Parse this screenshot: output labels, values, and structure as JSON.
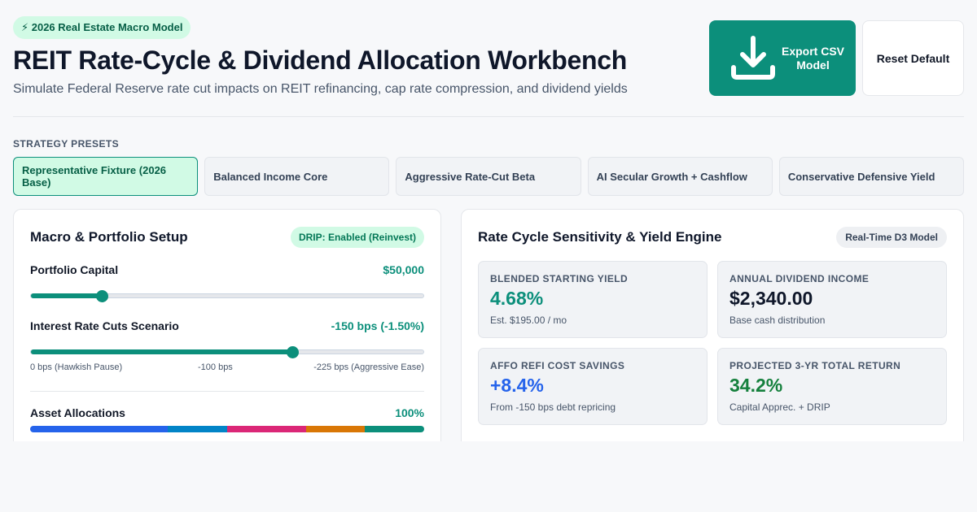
{
  "header": {
    "badge": "⚡ 2026 Real Estate Macro Model",
    "title": "REIT Rate-Cycle & Dividend Allocation Workbench",
    "subtitle": "Simulate Federal Reserve rate cut impacts on REIT refinancing, cap rate compression, and dividend yields",
    "export_label": "Export CSV Model",
    "export_icon": "download-icon",
    "reset_label": "Reset Default"
  },
  "presets": {
    "label": "STRATEGY PRESETS",
    "items": [
      {
        "label": "Representative Fixture (2026 Base)",
        "active": true
      },
      {
        "label": "Balanced Income Core",
        "active": false
      },
      {
        "label": "Aggressive Rate-Cut Beta",
        "active": false
      },
      {
        "label": "AI Secular Growth + Cashflow",
        "active": false
      },
      {
        "label": "Conservative Defensive Yield",
        "active": false
      }
    ]
  },
  "setup": {
    "title": "Macro & Portfolio Setup",
    "drip_badge": "DRIP: Enabled (Reinvest)",
    "capital": {
      "label": "Portfolio Capital",
      "value": "$50,000",
      "fraction": 0.18
    },
    "rate_cuts": {
      "label": "Interest Rate Cuts Scenario",
      "value": "-150 bps (-1.50%)",
      "fraction": 0.667,
      "ticks": [
        "0 bps (Hawkish Pause)",
        "-100 bps",
        "-225 bps (Aggressive Ease)"
      ]
    },
    "allocations": {
      "label": "Asset Allocations",
      "total": "100%",
      "segments": [
        {
          "share": 35,
          "color": "#2563eb"
        },
        {
          "share": 15,
          "color": "#0284c7"
        },
        {
          "share": 20,
          "color": "#db2777"
        },
        {
          "share": 15,
          "color": "#d97706"
        },
        {
          "share": 15,
          "color": "#0c8f7b"
        }
      ]
    }
  },
  "engine": {
    "title": "Rate Cycle Sensitivity & Yield Engine",
    "badge": "Real-Time D3 Model",
    "metrics": [
      {
        "label": "BLENDED STARTING YIELD",
        "value": "4.68%",
        "sub": "Est. $195.00 / mo",
        "color": "#0c8f7b"
      },
      {
        "label": "ANNUAL DIVIDEND INCOME",
        "value": "$2,340.00",
        "sub": "Base cash distribution",
        "color": "#0f172a"
      },
      {
        "label": "AFFO REFI COST SAVINGS",
        "value": "+8.4%",
        "sub": "From -150 bps debt repricing",
        "color": "#2563eb"
      },
      {
        "label": "PROJECTED 3-YR TOTAL RETURN",
        "value": "34.2%",
        "sub": "Capital Apprec. + DRIP",
        "color": "#15803d"
      }
    ]
  }
}
